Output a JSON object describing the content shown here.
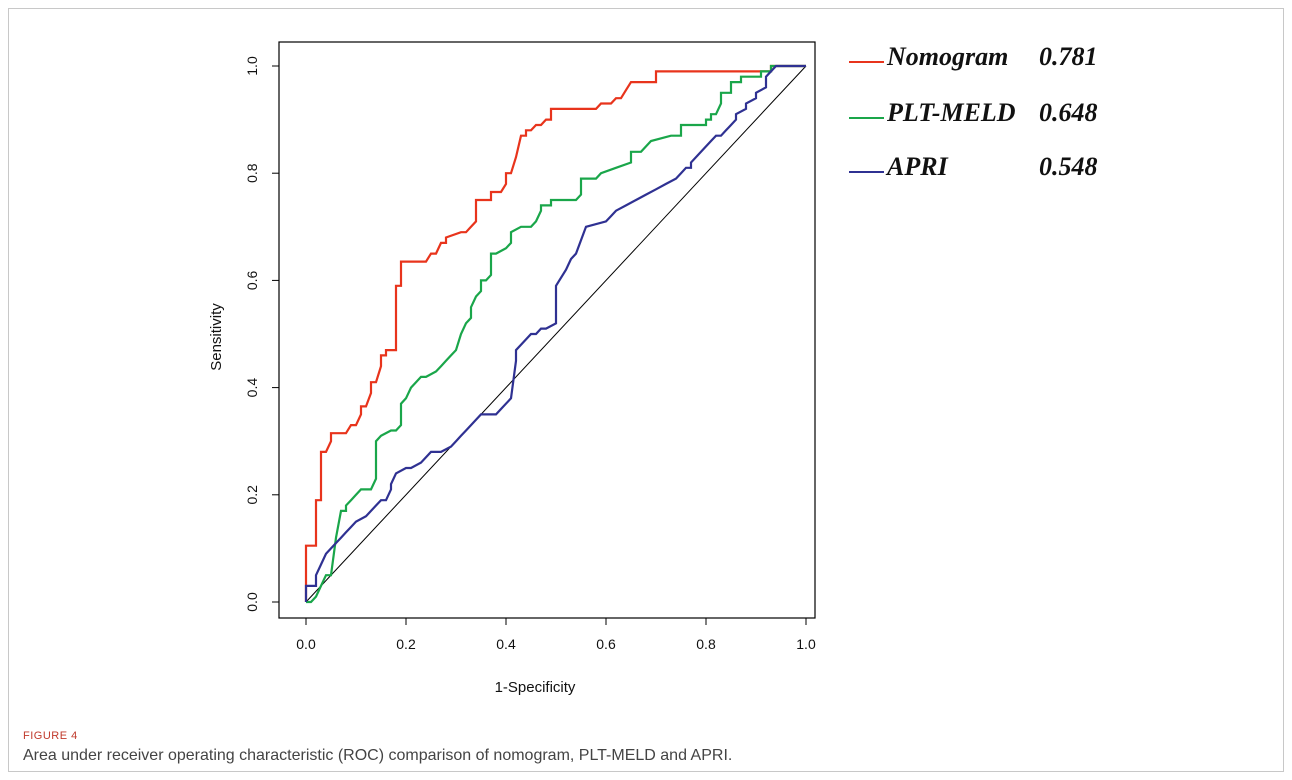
{
  "caption": {
    "label": "FIGURE 4",
    "text": "Area under receiver operating characteristic (ROC) comparison of nomogram, PLT-MELD and APRI."
  },
  "chart_data": {
    "type": "line",
    "title": "",
    "xlabel": "1-Specificity",
    "ylabel": "Sensitivity",
    "xlim": [
      0,
      1
    ],
    "ylim": [
      0,
      1
    ],
    "xticks": [
      "0.0",
      "0.2",
      "0.4",
      "0.6",
      "0.8",
      "1.0"
    ],
    "yticks": [
      "0.0",
      "0.2",
      "0.4",
      "0.6",
      "0.8",
      "1.0"
    ],
    "grid": false,
    "legend_position": "right",
    "series": [
      {
        "name": "Nomogram",
        "auc": "0.781",
        "color": "#e8341c",
        "x": [
          0,
          0,
          0.01,
          0.01,
          0.02,
          0.02,
          0.03,
          0.03,
          0.04,
          0.05,
          0.05,
          0.08,
          0.09,
          0.1,
          0.11,
          0.11,
          0.12,
          0.13,
          0.13,
          0.14,
          0.15,
          0.15,
          0.16,
          0.16,
          0.18,
          0.18,
          0.19,
          0.19,
          0.24,
          0.25,
          0.26,
          0.27,
          0.28,
          0.28,
          0.31,
          0.32,
          0.33,
          0.34,
          0.34,
          0.37,
          0.37,
          0.39,
          0.4,
          0.4,
          0.41,
          0.42,
          0.42,
          0.43,
          0.44,
          0.44,
          0.45,
          0.46,
          0.47,
          0.48,
          0.49,
          0.49,
          0.55,
          0.58,
          0.59,
          0.61,
          0.62,
          0.63,
          0.64,
          0.65,
          0.67,
          0.7,
          0.7,
          0.92,
          0.93,
          0.93,
          1.0
        ],
        "y": [
          0,
          0.105,
          0.105,
          0.105,
          0.105,
          0.19,
          0.19,
          0.28,
          0.28,
          0.3,
          0.315,
          0.315,
          0.33,
          0.33,
          0.35,
          0.365,
          0.365,
          0.39,
          0.41,
          0.41,
          0.44,
          0.46,
          0.46,
          0.47,
          0.47,
          0.59,
          0.59,
          0.635,
          0.635,
          0.65,
          0.65,
          0.67,
          0.67,
          0.68,
          0.69,
          0.69,
          0.7,
          0.71,
          0.75,
          0.75,
          0.765,
          0.765,
          0.78,
          0.8,
          0.8,
          0.83,
          0.83,
          0.87,
          0.87,
          0.88,
          0.88,
          0.89,
          0.89,
          0.9,
          0.9,
          0.92,
          0.92,
          0.92,
          0.93,
          0.93,
          0.94,
          0.94,
          0.955,
          0.97,
          0.97,
          0.97,
          0.99,
          0.99,
          0.99,
          1.0,
          1.0
        ]
      },
      {
        "name": "PLT-MELD",
        "auc": "0.648",
        "color": "#1aa64a",
        "x": [
          0,
          0.01,
          0.02,
          0.02,
          0.03,
          0.04,
          0.05,
          0.06,
          0.06,
          0.07,
          0.08,
          0.08,
          0.09,
          0.1,
          0.11,
          0.12,
          0.13,
          0.14,
          0.14,
          0.15,
          0.17,
          0.18,
          0.19,
          0.19,
          0.2,
          0.21,
          0.22,
          0.23,
          0.24,
          0.26,
          0.27,
          0.28,
          0.29,
          0.3,
          0.31,
          0.32,
          0.33,
          0.33,
          0.34,
          0.35,
          0.35,
          0.36,
          0.37,
          0.37,
          0.38,
          0.4,
          0.41,
          0.41,
          0.43,
          0.45,
          0.46,
          0.47,
          0.47,
          0.49,
          0.49,
          0.54,
          0.55,
          0.55,
          0.58,
          0.59,
          0.59,
          0.62,
          0.65,
          0.65,
          0.67,
          0.68,
          0.69,
          0.69,
          0.73,
          0.75,
          0.75,
          0.8,
          0.8,
          0.81,
          0.81,
          0.82,
          0.83,
          0.83,
          0.85,
          0.85,
          0.87,
          0.87,
          0.91,
          0.91,
          0.93,
          0.93,
          1.0
        ],
        "y": [
          0,
          0,
          0.01,
          0.01,
          0.03,
          0.05,
          0.05,
          0.12,
          0.12,
          0.17,
          0.17,
          0.18,
          0.19,
          0.2,
          0.21,
          0.21,
          0.21,
          0.23,
          0.3,
          0.31,
          0.32,
          0.32,
          0.33,
          0.37,
          0.38,
          0.4,
          0.41,
          0.42,
          0.42,
          0.43,
          0.44,
          0.45,
          0.46,
          0.47,
          0.5,
          0.52,
          0.53,
          0.55,
          0.57,
          0.58,
          0.6,
          0.6,
          0.61,
          0.65,
          0.65,
          0.66,
          0.67,
          0.69,
          0.7,
          0.7,
          0.71,
          0.73,
          0.74,
          0.74,
          0.75,
          0.75,
          0.76,
          0.79,
          0.79,
          0.8,
          0.8,
          0.81,
          0.82,
          0.84,
          0.84,
          0.85,
          0.86,
          0.86,
          0.87,
          0.87,
          0.89,
          0.89,
          0.9,
          0.9,
          0.91,
          0.91,
          0.93,
          0.95,
          0.95,
          0.97,
          0.97,
          0.98,
          0.98,
          0.99,
          0.99,
          1.0,
          1.0
        ]
      },
      {
        "name": "APRI",
        "auc": "0.548",
        "color": "#2f3192",
        "x": [
          0,
          0,
          0.02,
          0.02,
          0.03,
          0.04,
          0.05,
          0.06,
          0.07,
          0.08,
          0.09,
          0.1,
          0.12,
          0.13,
          0.14,
          0.15,
          0.16,
          0.17,
          0.17,
          0.18,
          0.2,
          0.21,
          0.23,
          0.24,
          0.25,
          0.27,
          0.29,
          0.3,
          0.31,
          0.32,
          0.33,
          0.34,
          0.35,
          0.37,
          0.38,
          0.39,
          0.41,
          0.42,
          0.42,
          0.43,
          0.44,
          0.45,
          0.46,
          0.47,
          0.48,
          0.5,
          0.5,
          0.52,
          0.53,
          0.54,
          0.56,
          0.56,
          0.6,
          0.61,
          0.62,
          0.64,
          0.66,
          0.68,
          0.7,
          0.72,
          0.74,
          0.75,
          0.76,
          0.77,
          0.77,
          0.79,
          0.81,
          0.82,
          0.83,
          0.84,
          0.85,
          0.86,
          0.86,
          0.88,
          0.88,
          0.9,
          0.9,
          0.92,
          0.92,
          0.94,
          1.0
        ],
        "y": [
          0,
          0.03,
          0.03,
          0.05,
          0.07,
          0.09,
          0.1,
          0.11,
          0.12,
          0.13,
          0.14,
          0.15,
          0.16,
          0.17,
          0.18,
          0.19,
          0.19,
          0.21,
          0.22,
          0.24,
          0.25,
          0.25,
          0.26,
          0.27,
          0.28,
          0.28,
          0.29,
          0.3,
          0.31,
          0.32,
          0.33,
          0.34,
          0.35,
          0.35,
          0.35,
          0.36,
          0.38,
          0.45,
          0.47,
          0.48,
          0.49,
          0.5,
          0.5,
          0.51,
          0.51,
          0.52,
          0.59,
          0.62,
          0.64,
          0.65,
          0.7,
          0.7,
          0.71,
          0.72,
          0.73,
          0.74,
          0.75,
          0.76,
          0.77,
          0.78,
          0.79,
          0.8,
          0.81,
          0.81,
          0.82,
          0.84,
          0.86,
          0.87,
          0.87,
          0.88,
          0.89,
          0.9,
          0.91,
          0.92,
          0.93,
          0.94,
          0.95,
          0.96,
          0.98,
          1.0,
          1.0
        ]
      }
    ],
    "reference_line": {
      "x": [
        0,
        1
      ],
      "y": [
        0,
        1
      ],
      "color": "#000000"
    }
  }
}
